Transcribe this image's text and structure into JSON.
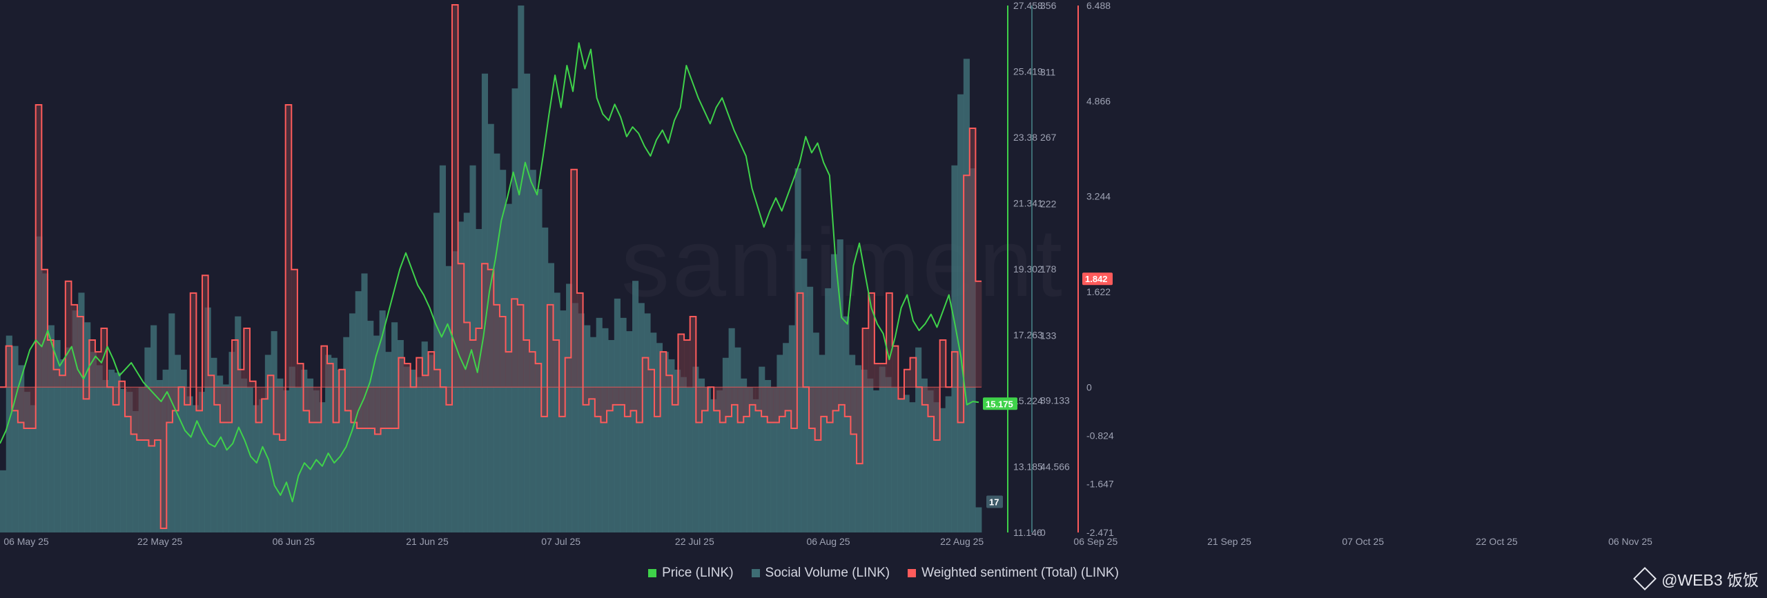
{
  "watermark": "santiment",
  "source_tag": "@WEB3 饭饭",
  "colors": {
    "price": "#3fd24a",
    "volume": "#3e6d74",
    "sentiment": "#ff5b5b",
    "sentiment_fill": "#6f3a45",
    "background": "#1b1d2e"
  },
  "chart_data": {
    "type": "line",
    "title": "",
    "legend_position": "bottom-center",
    "grid": false,
    "x_ticks": [
      "06 May 25",
      "22 May 25",
      "06 Jun 25",
      "21 Jun 25",
      "07 Jul 25",
      "22 Jul 25",
      "06 Aug 25",
      "22 Aug 25",
      "06 Sep 25",
      "21 Sep 25",
      "07 Oct 25",
      "22 Oct 25",
      "06 Nov 25"
    ],
    "axes": {
      "price": {
        "ticks": [
          "27.458",
          "25.419",
          "23.38",
          "21.341",
          "19.302",
          "17.263",
          "15.224",
          "13.185",
          "11.146"
        ],
        "ylim": [
          11.146,
          27.458
        ],
        "current_label": "15.175",
        "current_value": 15.175
      },
      "volume": {
        "ticks": [
          "356",
          "311",
          "267",
          "222",
          "178",
          "133",
          "89.133",
          "44.566",
          "0"
        ],
        "ylim": [
          0,
          356
        ],
        "current_label": "17",
        "current_value": 17
      },
      "sentiment": {
        "ticks": [
          "6.488",
          "4.866",
          "3.244",
          "1.622",
          "0",
          "-0.824",
          "-1.647",
          "-2.471"
        ],
        "ylim": [
          -2.471,
          6.488
        ],
        "current_label": "1.842",
        "current_value": 1.842
      }
    },
    "series": [
      {
        "name": "Price (LINK)",
        "axis": "price",
        "kind": "line",
        "values": [
          13.9,
          14.3,
          14.9,
          15.6,
          16.2,
          16.8,
          17.1,
          16.9,
          17.4,
          16.8,
          16.3,
          16.6,
          16.9,
          16.2,
          15.9,
          16.3,
          16.6,
          16.4,
          16.9,
          16.5,
          16.0,
          16.2,
          16.4,
          16.1,
          15.8,
          15.6,
          15.4,
          15.2,
          15.5,
          15.1,
          14.7,
          14.3,
          14.1,
          14.6,
          14.2,
          13.9,
          13.8,
          14.1,
          13.7,
          13.9,
          14.4,
          14.0,
          13.5,
          13.3,
          13.8,
          13.4,
          12.6,
          12.3,
          12.7,
          12.1,
          12.9,
          13.3,
          13.1,
          13.4,
          13.2,
          13.6,
          13.3,
          13.5,
          13.8,
          14.3,
          14.9,
          15.3,
          15.8,
          16.6,
          17.2,
          17.9,
          18.6,
          19.3,
          19.8,
          19.3,
          18.8,
          18.5,
          18.1,
          17.6,
          17.2,
          17.6,
          17.1,
          16.6,
          16.2,
          16.8,
          16.1,
          17.2,
          18.6,
          19.6,
          20.8,
          21.5,
          22.3,
          21.6,
          22.6,
          22.0,
          21.6,
          22.8,
          24.1,
          25.3,
          24.3,
          25.6,
          24.8,
          26.3,
          25.5,
          26.1,
          24.6,
          24.1,
          23.9,
          24.4,
          24.0,
          23.4,
          23.7,
          23.5,
          23.1,
          22.8,
          23.3,
          23.6,
          23.2,
          23.9,
          24.3,
          25.6,
          25.1,
          24.6,
          24.2,
          23.8,
          24.3,
          24.6,
          24.1,
          23.6,
          23.2,
          22.8,
          21.8,
          21.2,
          20.6,
          21.1,
          21.5,
          21.1,
          21.6,
          22.1,
          22.6,
          23.4,
          22.9,
          23.2,
          22.6,
          22.2,
          19.6,
          17.8,
          17.6,
          19.4,
          20.1,
          19.1,
          18.1,
          17.6,
          17.3,
          16.5,
          17.2,
          18.1,
          18.5,
          17.7,
          17.4,
          17.6,
          17.9,
          17.5,
          18.0,
          18.5,
          17.6,
          16.6,
          15.1,
          15.2,
          15.175
        ]
      },
      {
        "name": "Social Volume (LINK)",
        "axis": "volume",
        "kind": "bar",
        "values": [
          42,
          133,
          126,
          113,
          95,
          86,
          200,
          175,
          140,
          130,
          117,
          125,
          150,
          162,
          142,
          122,
          113,
          103,
          110,
          108,
          97,
          95,
          82,
          98,
          125,
          140,
          103,
          110,
          148,
          120,
          110,
          92,
          86,
          95,
          152,
          118,
          106,
          100,
          122,
          146,
          104,
          98,
          86,
          90,
          120,
          136,
          104,
          96,
          112,
          98,
          110,
          104,
          96,
          88,
          120,
          118,
          110,
          132,
          148,
          163,
          175,
          143,
          133,
          150,
          122,
          142,
          130,
          112,
          110,
          105,
          129,
          120,
          216,
          248,
          180,
          190,
          210,
          216,
          248,
          205,
          310,
          276,
          256,
          245,
          222,
          300,
          356,
          310,
          245,
          232,
          206,
          182,
          162,
          150,
          168,
          155,
          148,
          140,
          132,
          145,
          138,
          130,
          158,
          145,
          136,
          170,
          155,
          148,
          135,
          128,
          122,
          117,
          110,
          105,
          98,
          112,
          104,
          98,
          90,
          96,
          118,
          138,
          125,
          104,
          98,
          90,
          112,
          103,
          98,
          120,
          128,
          140,
          246,
          185,
          166,
          135,
          120,
          165,
          188,
          198,
          146,
          120,
          113,
          110,
          104,
          96,
          112,
          105,
          98,
          90,
          93,
          88,
          125,
          104,
          96,
          88,
          84,
          92,
          248,
          296,
          320,
          246,
          17
        ]
      },
      {
        "name": "Weighted sentiment (Total) (LINK)",
        "axis": "sentiment",
        "kind": "step",
        "values": [
          0.0,
          0.7,
          -0.4,
          -0.6,
          -0.7,
          -0.7,
          4.8,
          2.0,
          0.8,
          0.3,
          0.2,
          1.8,
          1.4,
          1.2,
          -0.2,
          0.8,
          0.6,
          1.0,
          0.0,
          -0.3,
          0.1,
          -0.5,
          -0.8,
          -0.9,
          -0.9,
          -1.0,
          -0.9,
          -2.4,
          -0.6,
          -0.4,
          0.0,
          -0.3,
          1.6,
          -0.4,
          1.9,
          0.2,
          -0.3,
          -0.6,
          -0.6,
          0.8,
          0.3,
          1.0,
          0.1,
          -0.6,
          -0.2,
          0.2,
          -0.8,
          -0.9,
          4.8,
          2.0,
          0.4,
          -0.4,
          -0.6,
          -0.6,
          0.7,
          0.4,
          -0.6,
          0.3,
          -0.4,
          -0.6,
          -0.7,
          -0.7,
          -0.7,
          -0.8,
          -0.7,
          -0.7,
          -0.7,
          0.5,
          0.4,
          0.0,
          0.5,
          0.2,
          0.6,
          0.3,
          0.0,
          -0.3,
          6.5,
          2.1,
          1.1,
          0.8,
          1.0,
          2.1,
          2.0,
          1.4,
          1.2,
          0.6,
          1.5,
          1.4,
          0.8,
          0.6,
          0.4,
          -0.5,
          1.4,
          0.8,
          -0.5,
          0.5,
          3.7,
          1.6,
          -0.3,
          -0.2,
          -0.5,
          -0.6,
          -0.4,
          -0.3,
          -0.3,
          -0.5,
          -0.4,
          -0.6,
          0.5,
          0.3,
          -0.5,
          0.6,
          0.2,
          -0.3,
          0.9,
          0.8,
          1.2,
          -0.6,
          -0.4,
          0.0,
          -0.4,
          -0.6,
          -0.5,
          -0.3,
          -0.6,
          -0.5,
          -0.3,
          -0.4,
          -0.5,
          -0.6,
          -0.6,
          -0.5,
          -0.4,
          -0.7,
          1.6,
          0.0,
          -0.7,
          -0.9,
          -0.5,
          -0.6,
          -0.4,
          -0.3,
          -0.5,
          -0.8,
          -1.3,
          1.0,
          1.6,
          0.4,
          0.4,
          1.6,
          0.7,
          -0.2,
          0.3,
          0.5,
          0.0,
          -0.3,
          -0.5,
          -0.9,
          0.8,
          0.0,
          0.6,
          -0.6,
          3.6,
          4.4,
          1.8
        ]
      }
    ]
  }
}
